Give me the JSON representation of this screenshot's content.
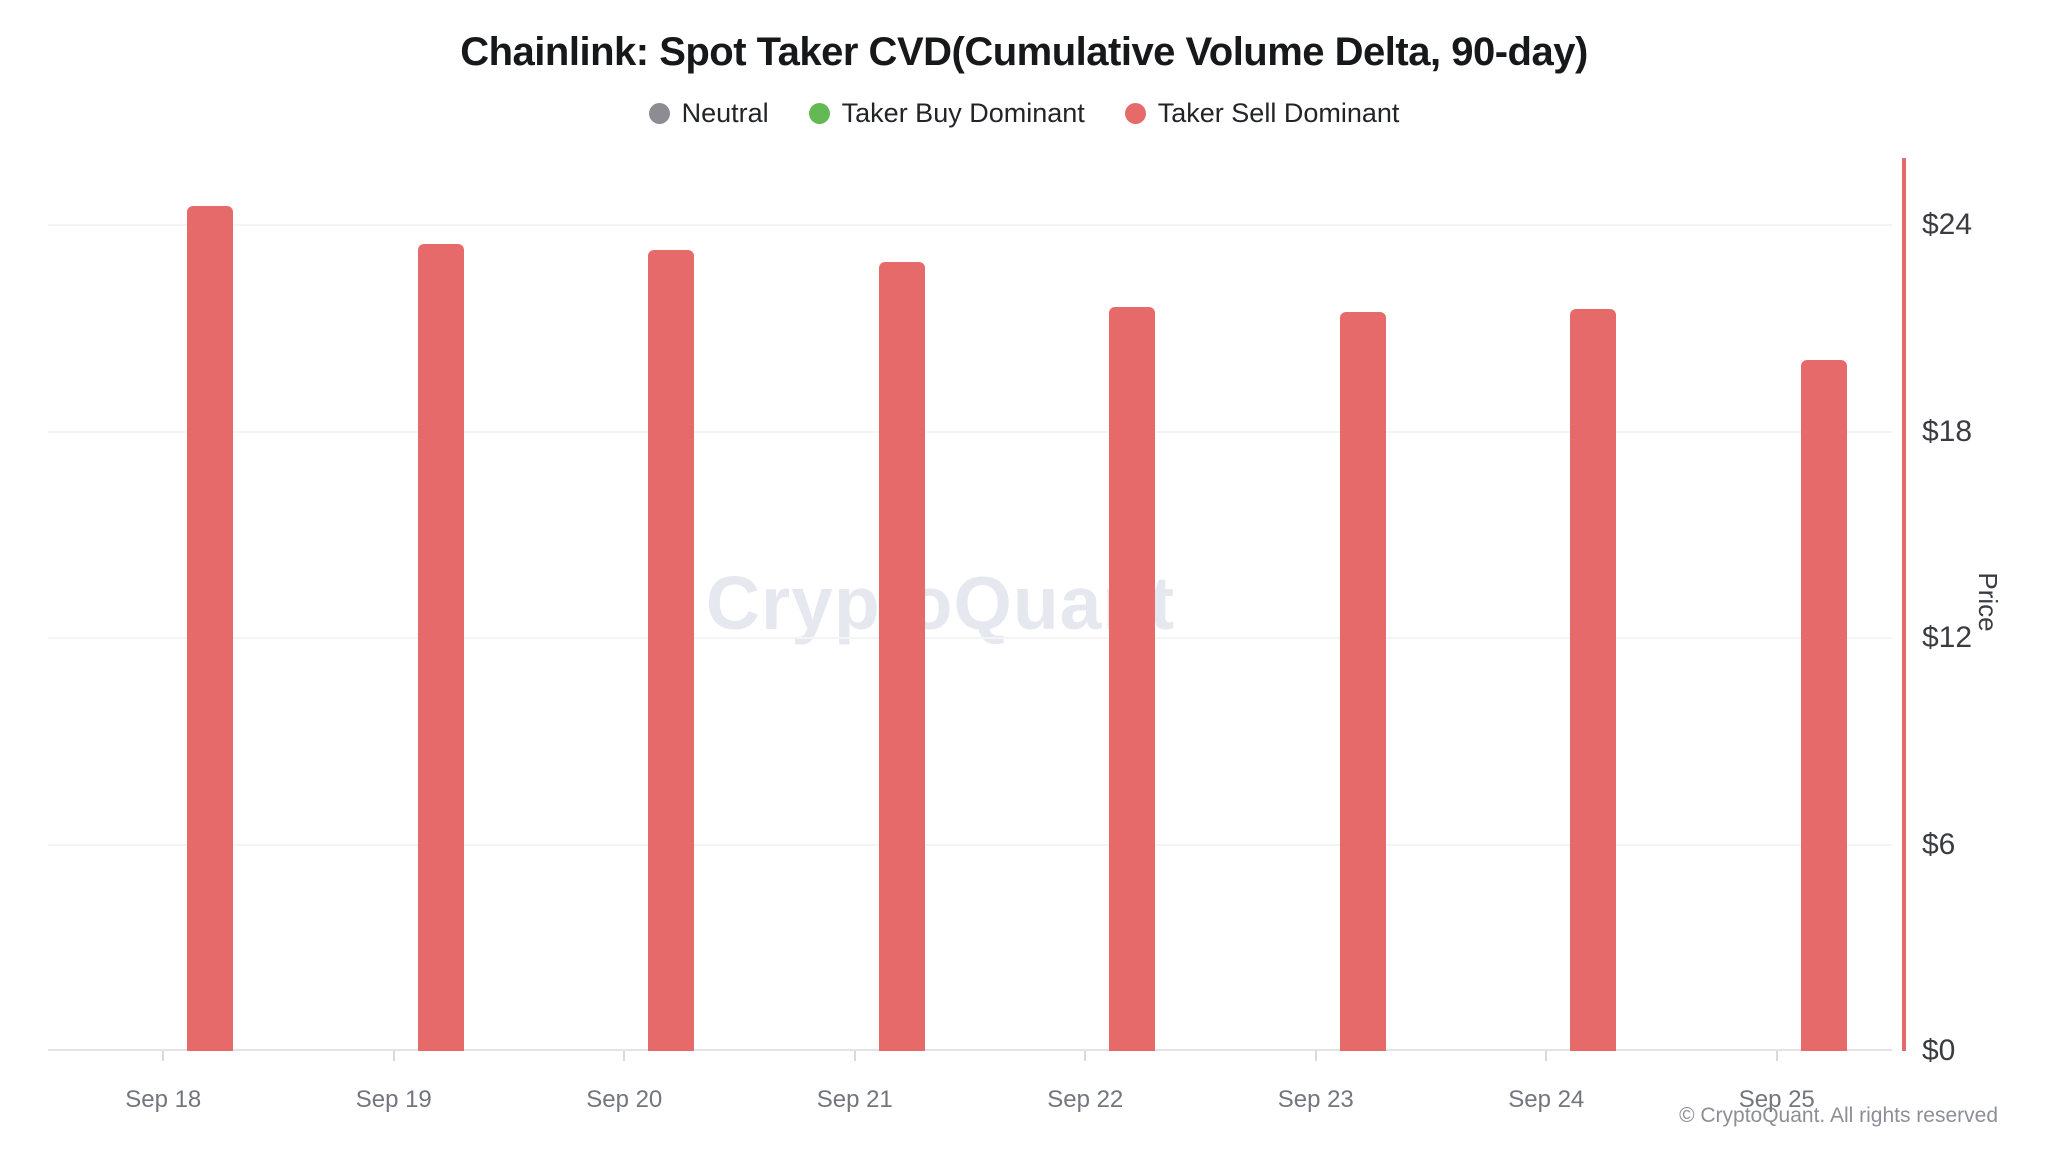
{
  "title": "Chainlink: Spot Taker CVD(Cumulative Volume Delta, 90-day)",
  "legend": {
    "items": [
      {
        "label": "Neutral",
        "color": "#8c8c92"
      },
      {
        "label": "Taker Buy Dominant",
        "color": "#65b954"
      },
      {
        "label": "Taker Sell Dominant",
        "color": "#e76a6a"
      }
    ]
  },
  "watermark": "CryptoQuant",
  "footer": {
    "copyright": "© CryptoQuant. All rights reserved"
  },
  "chart_data": {
    "type": "bar",
    "title": "Chainlink: Spot Taker CVD(Cumulative Volume Delta, 90-day)",
    "categories": [
      "Sep 18",
      "Sep 19",
      "Sep 20",
      "Sep 21",
      "Sep 22",
      "Sep 23",
      "Sep 24",
      "Sep 25"
    ],
    "series": [
      {
        "name": "Taker Sell Dominant",
        "color": "#e76a6a",
        "values": [
          24.55,
          23.45,
          23.28,
          22.93,
          21.63,
          21.49,
          21.56,
          20.1
        ]
      }
    ],
    "legend_entries": [
      "Neutral",
      "Taker Buy Dominant",
      "Taker Sell Dominant"
    ],
    "legend_position": "top",
    "xlabel": "",
    "ylabel": "Price",
    "ylim": [
      0,
      25.9
    ],
    "yticks": [
      {
        "label": "$0",
        "value": 0
      },
      {
        "label": "$6",
        "value": 6
      },
      {
        "label": "$12",
        "value": 12
      },
      {
        "label": "$18",
        "value": 18
      },
      {
        "label": "$24",
        "value": 24
      }
    ],
    "grid": true,
    "y_axis_side": "right",
    "y_axis_line_color": "#e76a6a",
    "gridline_color": "#f3f4f6",
    "background_color": "#ffffff"
  }
}
